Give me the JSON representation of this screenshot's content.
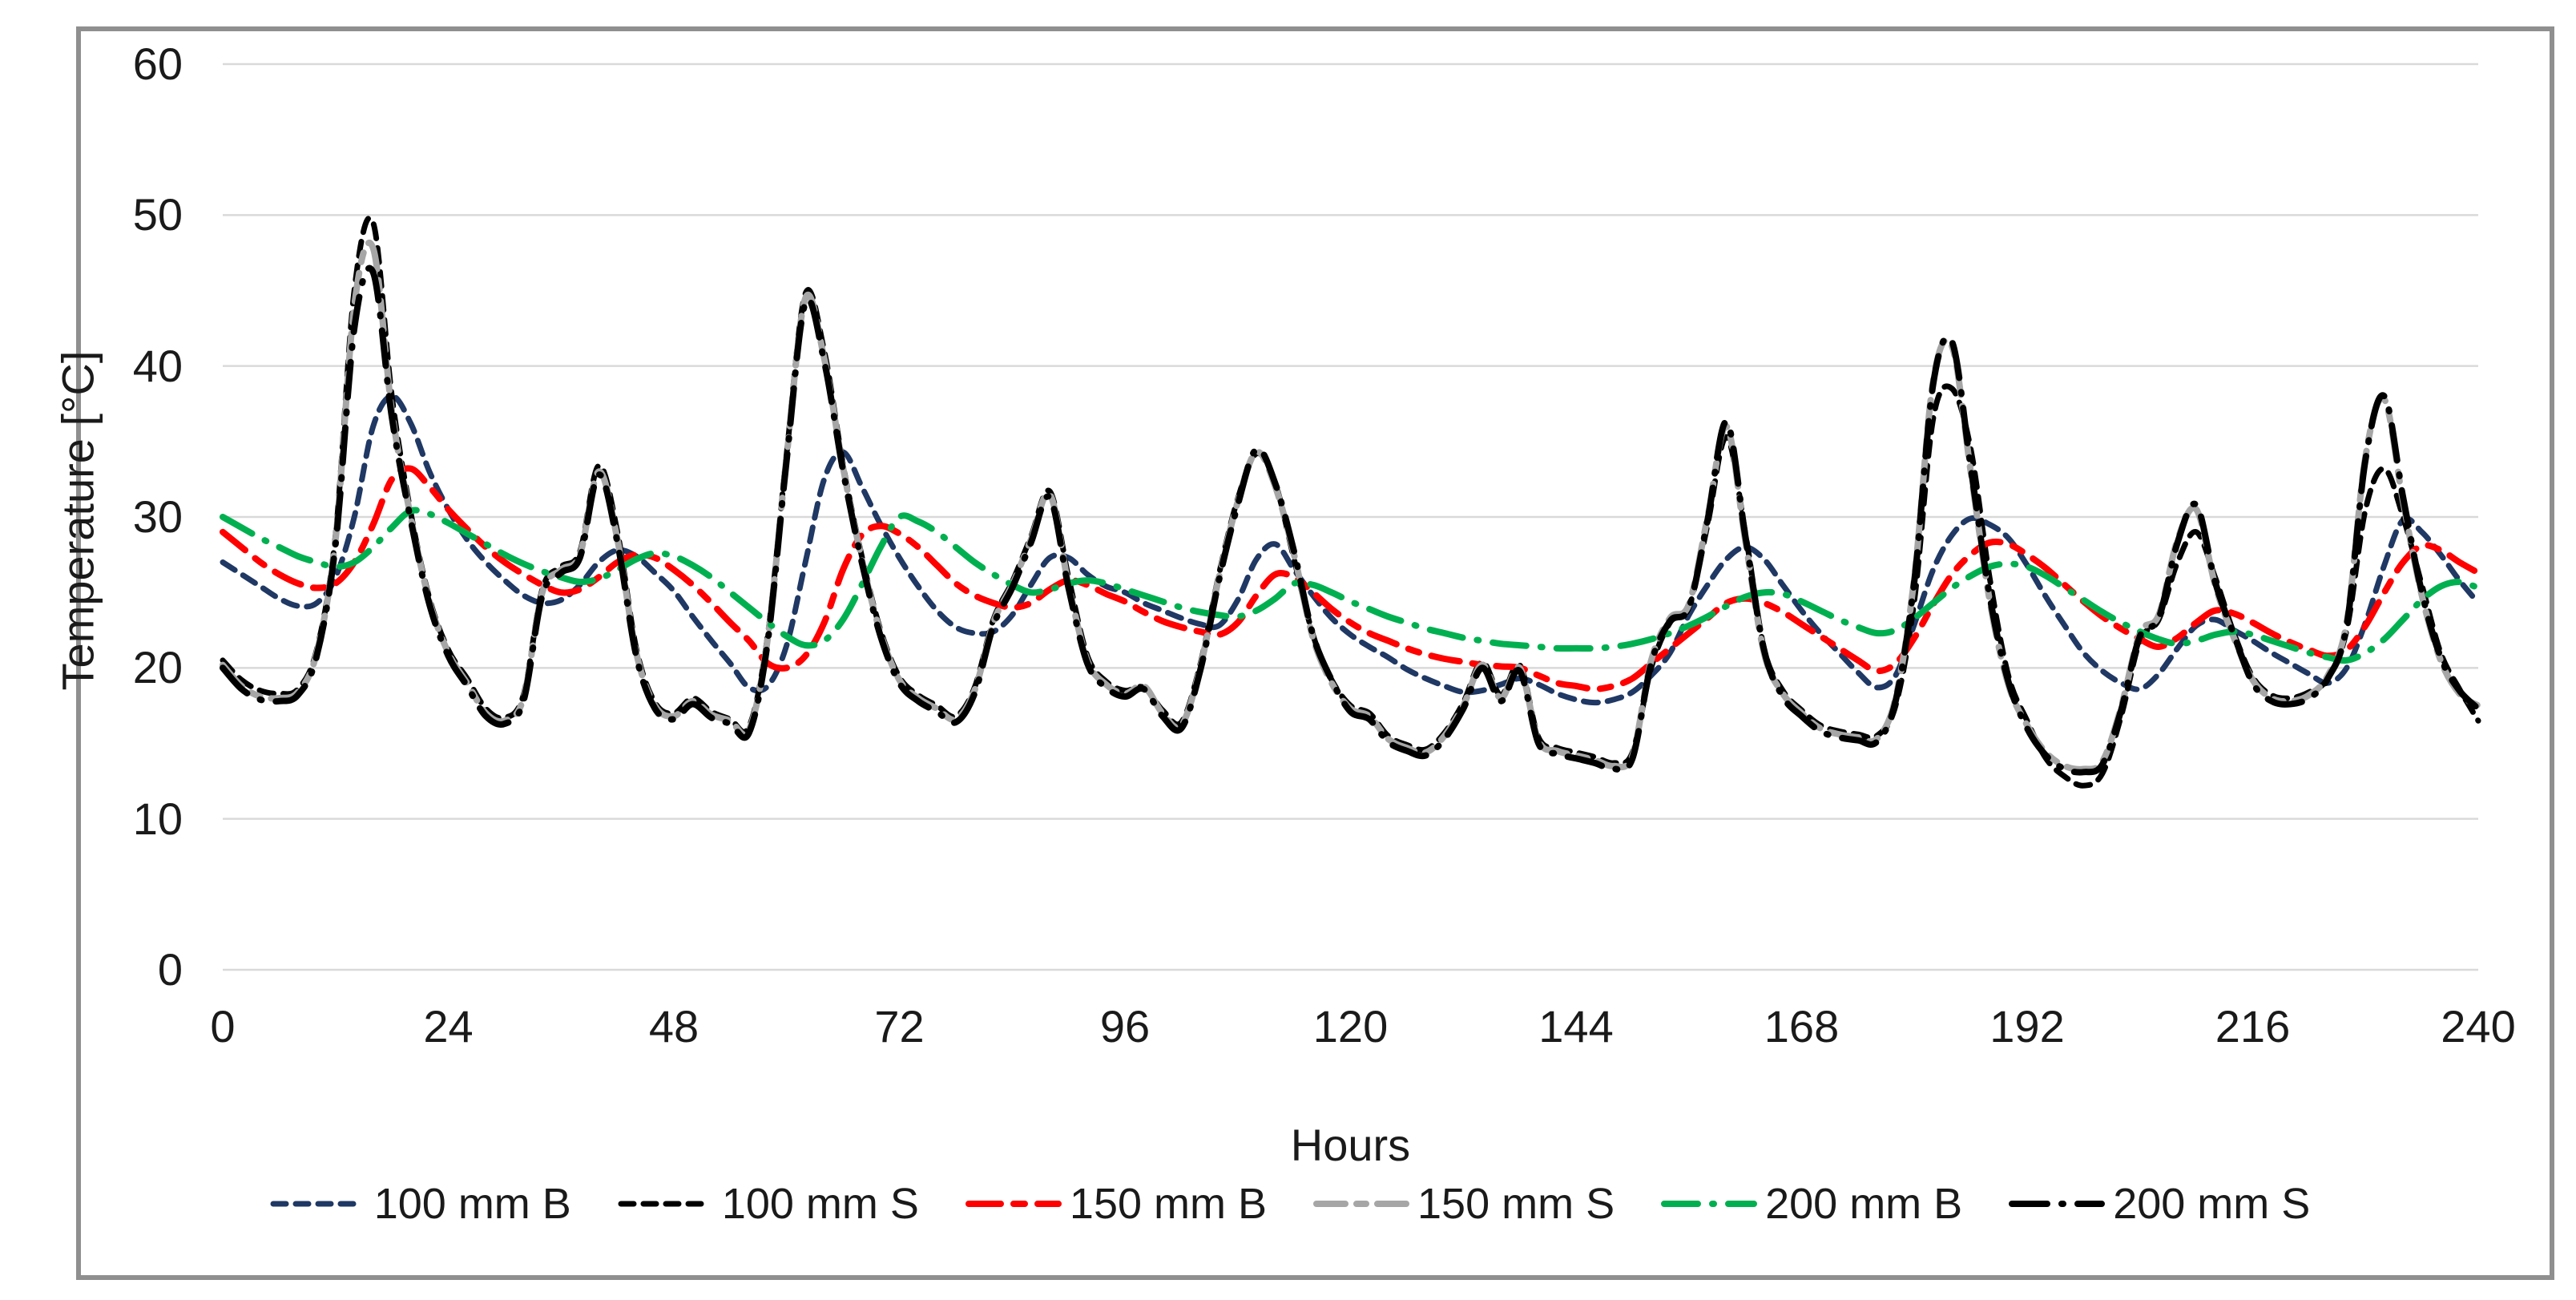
{
  "figure": {
    "background": "#FFFFFF",
    "border_color": "#8F8F8F",
    "gridline_color": "#D9D9D9",
    "text_color": "#1A1A1A"
  },
  "axes": {
    "y_title": "Temperature [°C]",
    "x_title": "Hours",
    "y_ticks": [
      "60",
      "50",
      "40",
      "30",
      "20",
      "10",
      "0"
    ],
    "x_ticks": [
      "0",
      "24",
      "48",
      "72",
      "96",
      "120",
      "144",
      "168",
      "192",
      "216",
      "240"
    ]
  },
  "legend": {
    "position": "bottom",
    "items": [
      {
        "label": "100 mm B",
        "color": "#1F3864",
        "preview_dash": "16 12",
        "preview_width": 7
      },
      {
        "label": "100 mm S",
        "color": "#000000",
        "preview_dash": "16 12",
        "preview_width": 7
      },
      {
        "label": "150 mm B",
        "color": "#FF0000",
        "preview_dash": "40 16 14 16",
        "preview_width": 8
      },
      {
        "label": "150 mm S",
        "color": "#A6A6A6",
        "preview_dash": "36 14 12 14",
        "preview_width": 8
      },
      {
        "label": "200 mm B",
        "color": "#00B050",
        "preview_dash": "42 18 2 18",
        "preview_width": 8
      },
      {
        "label": "200 mm S",
        "color": "#000000",
        "preview_dash": "44 18 2 18",
        "preview_width": 8
      }
    ]
  },
  "chart_data": {
    "type": "line",
    "title": "",
    "xlabel": "Hours",
    "ylabel": "Temperature [°C]",
    "xlim": [
      0,
      240
    ],
    "ylim": [
      0,
      60
    ],
    "x_tick_step": 24,
    "y_tick_step": 10,
    "grid": true,
    "x_start": 0,
    "x_step": 2,
    "x_end": 240,
    "values_note": "temperatures in °C sampled every 2 hours, read from plot (approximate)",
    "series": [
      {
        "name": "100 mm B",
        "color": "#1F3864",
        "dash": "18 12",
        "width": 7,
        "values": [
          27.0,
          26.2,
          25.4,
          24.6,
          24.1,
          24.3,
          26.0,
          30.0,
          36.0,
          38.0,
          36.2,
          33.0,
          30.5,
          28.5,
          27.0,
          25.8,
          24.8,
          24.3,
          24.5,
          25.5,
          27.0,
          27.8,
          27.4,
          26.3,
          25.1,
          23.4,
          21.8,
          20.3,
          18.7,
          18.8,
          21.5,
          27.0,
          32.5,
          34.3,
          32.0,
          29.5,
          27.3,
          25.4,
          23.8,
          22.7,
          22.3,
          22.4,
          23.5,
          25.5,
          27.3,
          27.3,
          26.2,
          25.4,
          25.0,
          24.3,
          23.8,
          23.3,
          22.9,
          22.8,
          24.5,
          27.2,
          28.2,
          26.5,
          24.8,
          23.3,
          22.2,
          21.4,
          20.7,
          19.9,
          19.3,
          18.8,
          18.4,
          18.5,
          18.9,
          19.3,
          18.9,
          18.3,
          17.9,
          17.7,
          17.9,
          18.4,
          19.5,
          21.0,
          23.5,
          25.5,
          27.2,
          28.0,
          27.2,
          25.5,
          23.8,
          22.3,
          21.0,
          19.7,
          18.7,
          19.5,
          22.9,
          26.5,
          28.8,
          29.9,
          29.5,
          28.6,
          26.8,
          24.7,
          22.8,
          21.0,
          19.8,
          19.0,
          18.6,
          19.6,
          21.3,
          22.8,
          23.2,
          22.5,
          21.8,
          21.0,
          20.3,
          19.6,
          19.0,
          20.0,
          23.0,
          26.8,
          29.8,
          29.0,
          27.5,
          25.8,
          24.3
        ]
      },
      {
        "name": "100 mm S",
        "color": "#000000",
        "dash": "18 12",
        "width": 7,
        "values": [
          20.5,
          19.2,
          18.5,
          18.3,
          18.6,
          21.2,
          28.8,
          45.0,
          49.5,
          38.0,
          30.3,
          24.6,
          21.2,
          19.3,
          17.3,
          16.7,
          18.2,
          25.2,
          26.7,
          27.7,
          33.4,
          29.0,
          21.3,
          17.7,
          17.0,
          18.0,
          17.1,
          16.6,
          16.1,
          22.2,
          34.2,
          44.8,
          41.0,
          33.5,
          27.4,
          22.5,
          19.4,
          18.2,
          17.5,
          16.8,
          18.7,
          23.2,
          25.7,
          28.7,
          31.7,
          26.0,
          20.8,
          19.1,
          18.5,
          18.7,
          17.2,
          16.4,
          20.2,
          26.2,
          31.2,
          34.2,
          32.2,
          27.2,
          22.2,
          19.2,
          17.5,
          17.0,
          15.5,
          14.9,
          14.6,
          15.7,
          17.7,
          20.4,
          18.2,
          20.2,
          15.4,
          14.7,
          14.4,
          14.1,
          13.7,
          14.4,
          20.0,
          23.0,
          24.0,
          29.5,
          35.3,
          29.0,
          21.3,
          18.5,
          17.2,
          16.2,
          15.8,
          15.6,
          15.5,
          17.5,
          24.5,
          36.5,
          38.5,
          34.5,
          26.0,
          19.5,
          16.5,
          14.0,
          12.8,
          12.2,
          13.0,
          16.8,
          21.8,
          23.2,
          27.0,
          29.0,
          26.0,
          22.3,
          19.4,
          18.2,
          18.0,
          18.4,
          19.3,
          22.5,
          30.5,
          33.2,
          30.0,
          25.5,
          21.0,
          18.6,
          16.5
        ]
      },
      {
        "name": "150 mm B",
        "color": "#FF0000",
        "dash": "36 16 14 16",
        "width": 8,
        "values": [
          29.0,
          28.0,
          27.0,
          26.2,
          25.6,
          25.3,
          25.6,
          27.0,
          29.5,
          32.5,
          33.2,
          32.0,
          30.5,
          29.2,
          28.0,
          27.0,
          26.2,
          25.5,
          25.0,
          25.2,
          26.0,
          27.0,
          27.5,
          27.3,
          26.5,
          25.5,
          24.3,
          23.0,
          21.8,
          20.3,
          20.0,
          20.8,
          23.0,
          26.5,
          28.8,
          29.4,
          28.9,
          28.0,
          26.8,
          25.6,
          24.8,
          24.3,
          24.0,
          24.3,
          25.2,
          25.8,
          25.5,
          24.9,
          24.4,
          23.7,
          23.1,
          22.7,
          22.4,
          22.2,
          23.0,
          24.8,
          26.2,
          26.0,
          25.0,
          23.9,
          23.0,
          22.3,
          21.8,
          21.3,
          20.9,
          20.6,
          20.4,
          20.2,
          20.1,
          20.0,
          19.5,
          19.0,
          18.8,
          18.6,
          18.8,
          19.3,
          20.3,
          21.3,
          22.3,
          23.3,
          24.3,
          24.6,
          24.3,
          23.7,
          22.9,
          22.1,
          21.3,
          20.5,
          19.8,
          20.3,
          22.0,
          24.2,
          26.2,
          27.5,
          28.3,
          28.2,
          27.5,
          26.6,
          25.5,
          24.4,
          23.4,
          22.6,
          21.9,
          21.4,
          22.0,
          23.0,
          23.8,
          23.6,
          23.0,
          22.3,
          21.7,
          21.2,
          20.8,
          21.2,
          22.8,
          25.0,
          27.0,
          28.1,
          27.8,
          27.0,
          26.3
        ]
      },
      {
        "name": "150 mm S",
        "color": "#A6A6A6",
        "dash": "36 14 12 14",
        "width": 8,
        "values": [
          20.2,
          18.8,
          18.1,
          18.0,
          18.4,
          21.0,
          28.5,
          44.0,
          47.8,
          37.0,
          30.0,
          24.4,
          21.0,
          19.0,
          17.0,
          16.5,
          18.0,
          25.0,
          26.5,
          27.5,
          33.0,
          28.5,
          21.0,
          17.5,
          16.8,
          17.8,
          16.9,
          16.5,
          15.9,
          22.0,
          34.0,
          44.5,
          40.5,
          33.3,
          27.2,
          22.3,
          19.2,
          18.0,
          17.3,
          16.6,
          18.5,
          23.0,
          25.5,
          28.5,
          31.5,
          25.5,
          20.5,
          18.9,
          18.3,
          18.8,
          17.0,
          16.2,
          20.0,
          26.0,
          31.0,
          34.3,
          32.0,
          27.5,
          22.0,
          19.0,
          17.3,
          16.8,
          15.3,
          14.7,
          14.4,
          15.5,
          17.5,
          20.2,
          18.0,
          20.0,
          15.2,
          14.5,
          14.2,
          13.9,
          13.5,
          14.2,
          20.5,
          23.3,
          24.2,
          30.0,
          36.0,
          28.5,
          21.0,
          18.3,
          17.0,
          16.0,
          15.6,
          15.4,
          15.3,
          18.0,
          26.0,
          39.0,
          41.3,
          33.0,
          24.5,
          18.9,
          16.2,
          14.4,
          13.5,
          13.3,
          13.8,
          17.4,
          22.3,
          23.5,
          28.5,
          30.5,
          25.5,
          22.0,
          19.2,
          18.0,
          17.8,
          18.2,
          19.5,
          23.0,
          34.0,
          37.8,
          31.0,
          24.8,
          20.5,
          18.3,
          17.5
        ]
      },
      {
        "name": "200 mm B",
        "color": "#00B050",
        "dash": "42 18 2 18",
        "width": 8,
        "values": [
          30.0,
          29.3,
          28.6,
          28.0,
          27.4,
          27.0,
          26.7,
          27.0,
          28.0,
          29.3,
          30.4,
          30.2,
          29.6,
          28.9,
          28.2,
          27.5,
          26.9,
          26.4,
          26.0,
          25.7,
          25.9,
          26.5,
          27.2,
          27.6,
          27.4,
          26.8,
          26.0,
          25.0,
          24.0,
          23.0,
          22.1,
          21.5,
          21.8,
          23.2,
          25.5,
          28.0,
          30.0,
          29.7,
          29.0,
          28.0,
          27.0,
          26.2,
          25.5,
          25.0,
          25.2,
          25.6,
          25.8,
          25.6,
          25.2,
          24.8,
          24.4,
          24.0,
          23.7,
          23.5,
          23.4,
          23.8,
          24.6,
          25.6,
          25.5,
          25.0,
          24.4,
          23.9,
          23.4,
          23.0,
          22.6,
          22.3,
          22.0,
          21.8,
          21.6,
          21.5,
          21.4,
          21.3,
          21.3,
          21.3,
          21.4,
          21.6,
          21.9,
          22.3,
          22.8,
          23.4,
          24.1,
          24.7,
          25.0,
          24.9,
          24.4,
          23.8,
          23.2,
          22.7,
          22.3,
          22.5,
          23.3,
          24.3,
          25.3,
          26.1,
          26.7,
          26.9,
          26.7,
          26.1,
          25.3,
          24.5,
          23.7,
          23.0,
          22.4,
          21.9,
          21.6,
          21.8,
          22.2,
          22.4,
          22.2,
          21.8,
          21.4,
          21.0,
          20.7,
          20.5,
          21.0,
          21.9,
          23.2,
          24.5,
          25.4,
          25.7,
          25.3
        ]
      },
      {
        "name": "200 mm S",
        "color": "#000000",
        "dash": "44 18 2 18",
        "width": 8,
        "values": [
          20.0,
          18.6,
          17.9,
          17.8,
          18.2,
          20.8,
          28.2,
          42.5,
          46.2,
          36.6,
          29.8,
          24.2,
          20.8,
          18.8,
          16.8,
          16.3,
          17.8,
          24.8,
          26.3,
          27.3,
          32.8,
          28.3,
          20.8,
          17.3,
          16.6,
          17.6,
          16.7,
          16.3,
          15.7,
          21.8,
          33.8,
          44.2,
          40.3,
          33.1,
          27.0,
          22.1,
          19.0,
          17.8,
          17.1,
          16.4,
          18.3,
          22.8,
          25.3,
          28.3,
          31.3,
          25.3,
          20.3,
          18.7,
          18.1,
          18.6,
          16.8,
          16.0,
          19.8,
          25.8,
          30.8,
          34.5,
          32.2,
          27.7,
          22.2,
          19.2,
          17.1,
          16.6,
          15.1,
          14.5,
          14.2,
          15.3,
          17.3,
          20.0,
          17.8,
          19.8,
          15.0,
          14.3,
          14.0,
          13.7,
          13.3,
          14.0,
          20.3,
          23.1,
          24.0,
          29.8,
          36.3,
          28.8,
          21.2,
          18.1,
          16.8,
          15.8,
          15.4,
          15.2,
          15.1,
          17.8,
          25.8,
          38.8,
          41.6,
          33.3,
          24.8,
          19.1,
          16.0,
          14.2,
          13.3,
          13.1,
          13.6,
          17.2,
          22.1,
          23.3,
          28.3,
          30.8,
          25.7,
          22.2,
          19.0,
          17.8,
          17.6,
          18.0,
          19.3,
          22.8,
          33.8,
          38.0,
          31.3,
          25.0,
          20.7,
          18.5,
          17.3
        ]
      }
    ]
  }
}
